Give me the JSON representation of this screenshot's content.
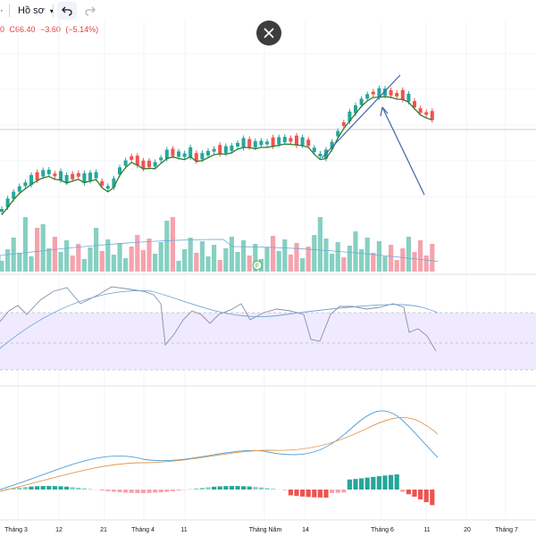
{
  "toolbar": {
    "profile_label": "Hồ sơ",
    "left_edge_glyph": "·"
  },
  "legend": {
    "partial_value": "0",
    "close": "C66.40",
    "change": "−3.60",
    "change_pct": "(−5.14%)"
  },
  "x_axis": {
    "labels": [
      "Tháng 3",
      "12",
      "21",
      "Tháng 4",
      "11",
      "Tháng Năm",
      "14",
      "Tháng 6",
      "11",
      "20",
      "Tháng 7"
    ]
  },
  "icons": {
    "undo": "undo-icon",
    "redo": "redo-icon",
    "close": "close-icon",
    "dropdown": "chevron-down-icon",
    "event": "event-marker-icon"
  },
  "event_marker": "F",
  "colors": {
    "up": "#26a69a",
    "down": "#ef5350",
    "vol_up": "#86d0c2",
    "vol_down": "#f5a3ad",
    "ma_line": "#2e7d32",
    "rsi_band": "#efeaff",
    "macd_line": "#4f9fd8",
    "signal_line": "#e39950",
    "annotation": "#3f64ad"
  }
}
